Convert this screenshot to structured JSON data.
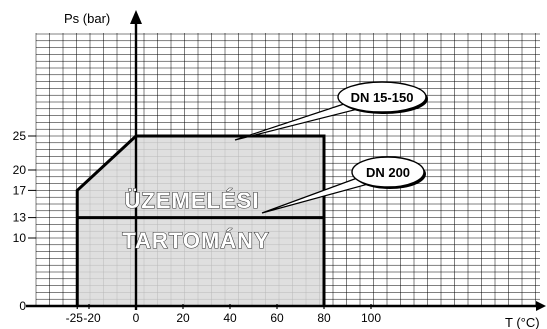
{
  "chart_data": {
    "type": "area",
    "ylabel": "Ps (bar)",
    "xlabel": "T (°C)",
    "x_ticks": [
      "-25",
      "-20",
      "0",
      "20",
      "40",
      "60",
      "80",
      "100"
    ],
    "x_tick_values": [
      -25,
      -20,
      0,
      20,
      40,
      60,
      80,
      100
    ],
    "y_ticks": [
      "0",
      "10",
      "13",
      "17",
      "20",
      "25"
    ],
    "y_tick_values": [
      0,
      10,
      13,
      17,
      20,
      25
    ],
    "xlim": [
      -35,
      120
    ],
    "ylim": [
      0,
      40
    ],
    "grid": true,
    "series": [
      {
        "name": "DN 15-150",
        "points": [
          [
            -25,
            0
          ],
          [
            -25,
            17
          ],
          [
            0,
            25
          ],
          [
            80,
            25
          ],
          [
            80,
            0
          ]
        ]
      },
      {
        "name": "DN 200",
        "points": [
          [
            -25,
            13
          ],
          [
            80,
            13
          ]
        ]
      }
    ],
    "region_label": [
      "ÜZEMELÉSI",
      "TARTOMÁNY"
    ],
    "colors": {
      "region_fill": "#d9d9d9",
      "grid": "#000000",
      "boundary": "#000000"
    }
  }
}
